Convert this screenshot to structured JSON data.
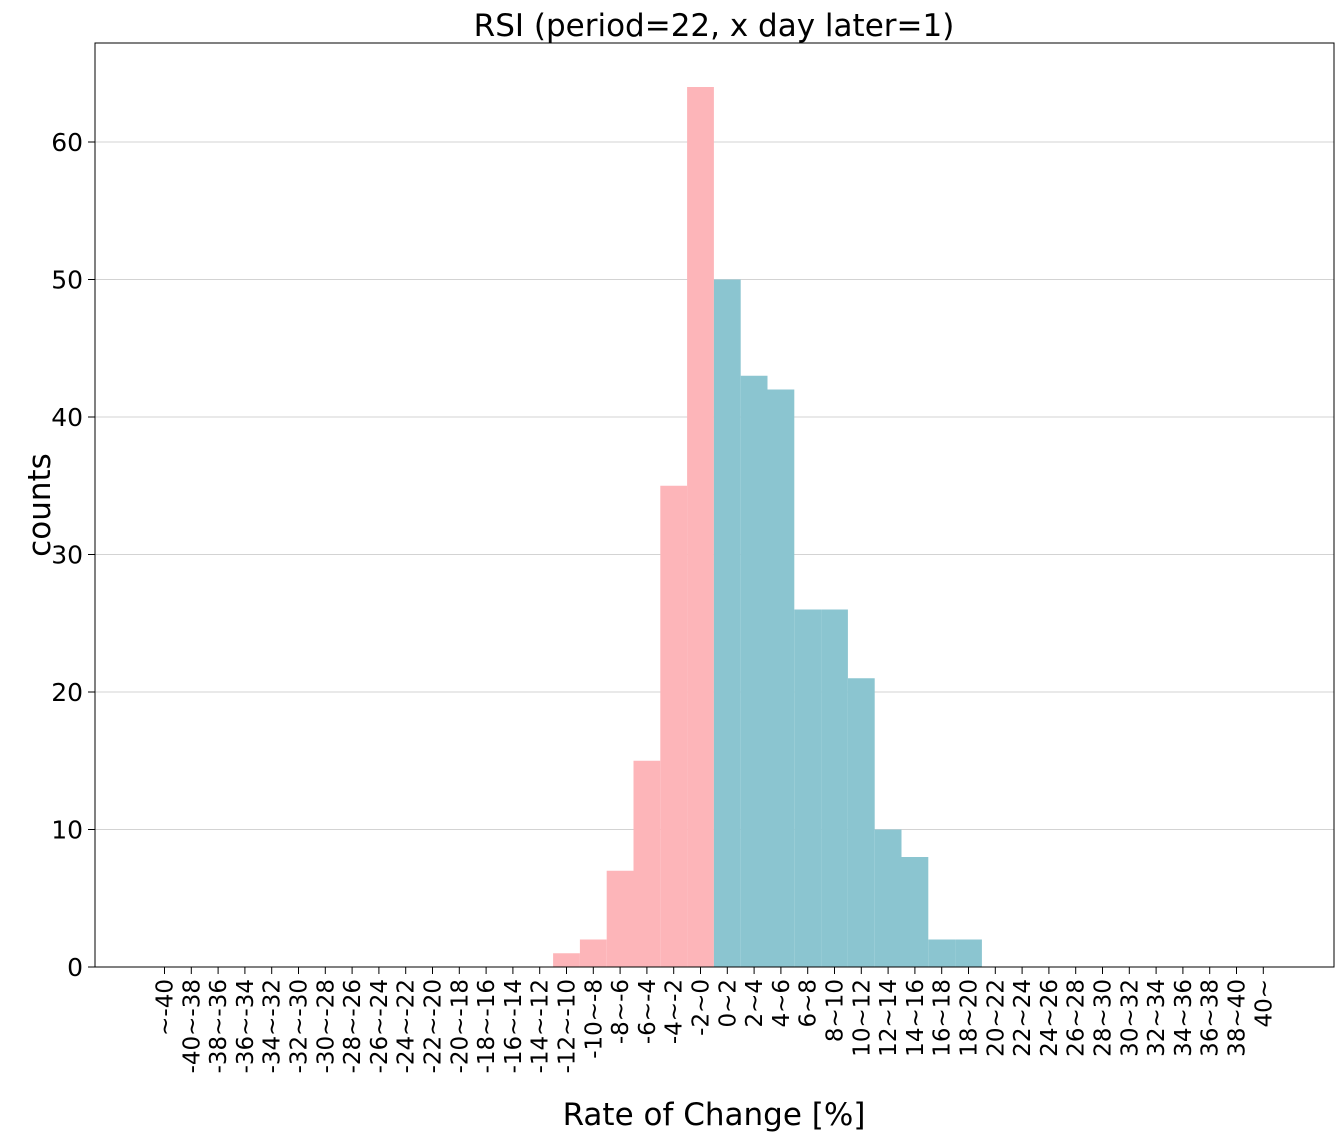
{
  "chart_data": {
    "type": "bar",
    "title": "RSI (period=22, x day later=1)",
    "xlabel": "Rate of Change [%]",
    "ylabel": "counts",
    "ylim": [
      0,
      67.2
    ],
    "yticks": [
      0,
      10,
      20,
      30,
      40,
      50,
      60
    ],
    "grid": "y",
    "categories": [
      "~-40",
      "-40~-38",
      "-38~-36",
      "-36~-34",
      "-34~-32",
      "-32~-30",
      "-30~-28",
      "-28~-26",
      "-26~-24",
      "-24~-22",
      "-22~-20",
      "-20~-18",
      "-18~-16",
      "-16~-14",
      "-14~-12",
      "-12~-10",
      "-10~-8",
      "-8~-6",
      "-6~-4",
      "-4~-2",
      "-2~0",
      "0~2",
      "2~4",
      "4~6",
      "6~8",
      "8~10",
      "10~12",
      "12~14",
      "14~16",
      "16~18",
      "18~20",
      "20~22",
      "22~24",
      "24~26",
      "26~28",
      "28~30",
      "30~32",
      "32~34",
      "34~36",
      "36~38",
      "38~40",
      "40~"
    ],
    "series": [
      {
        "color": "#fdb5b9",
        "values": [
          0,
          0,
          0,
          0,
          0,
          0,
          0,
          0,
          0,
          0,
          0,
          0,
          0,
          0,
          0,
          1,
          2,
          7,
          15,
          35,
          64,
          0,
          0,
          0,
          0,
          0,
          0,
          0,
          0,
          0,
          0,
          0,
          0,
          0,
          0,
          0,
          0,
          0,
          0,
          0,
          0,
          0
        ]
      },
      {
        "color": "#8bc5d0",
        "values": [
          0,
          0,
          0,
          0,
          0,
          0,
          0,
          0,
          0,
          0,
          0,
          0,
          0,
          0,
          0,
          0,
          0,
          0,
          0,
          0,
          0,
          50,
          43,
          42,
          26,
          26,
          21,
          10,
          8,
          2,
          2,
          0,
          0,
          0,
          0,
          0,
          0,
          0,
          0,
          0,
          0,
          0
        ]
      }
    ]
  }
}
